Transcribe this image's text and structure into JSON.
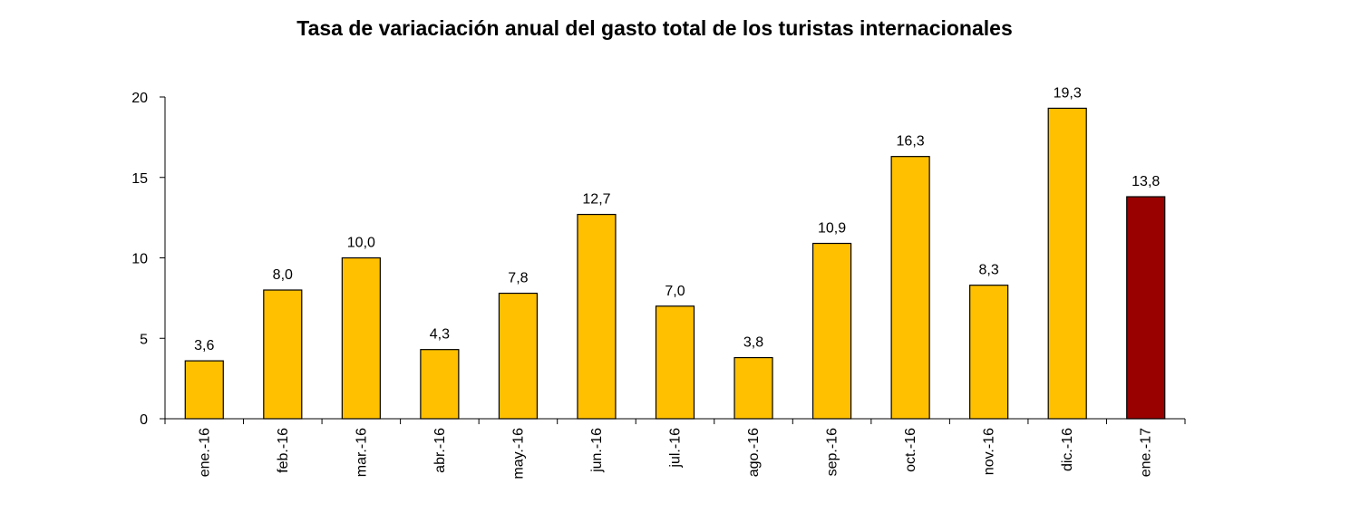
{
  "chart_data": {
    "type": "bar",
    "title": "Tasa de variaciación anual del gasto total de los turistas internacionales",
    "xlabel": "",
    "ylabel": "",
    "ylim": [
      0,
      20
    ],
    "yticks": [
      "0",
      "5",
      "10",
      "15",
      "20"
    ],
    "grid": false,
    "categories": [
      "ene.-16",
      "feb.-16",
      "mar.-16",
      "abr.-16",
      "may.-16",
      "jun.-16",
      "jul.-16",
      "ago.-16",
      "sep.-16",
      "oct.-16",
      "nov.-16",
      "dic.-16",
      "ene.-17"
    ],
    "values": [
      3.6,
      8.0,
      10.0,
      4.3,
      7.8,
      12.7,
      7.0,
      3.8,
      10.9,
      16.3,
      8.3,
      19.3,
      13.8
    ],
    "value_labels": [
      "3,6",
      "8,0",
      "10,0",
      "4,3",
      "7,8",
      "12,7",
      "7,0",
      "3,8",
      "10,9",
      "16,3",
      "8,3",
      "19,3",
      "13,8"
    ],
    "colors": {
      "default_bar": "#FFC000",
      "highlight_bar": "#990000",
      "bar_stroke": "#000000"
    },
    "highlight_index": 12
  }
}
